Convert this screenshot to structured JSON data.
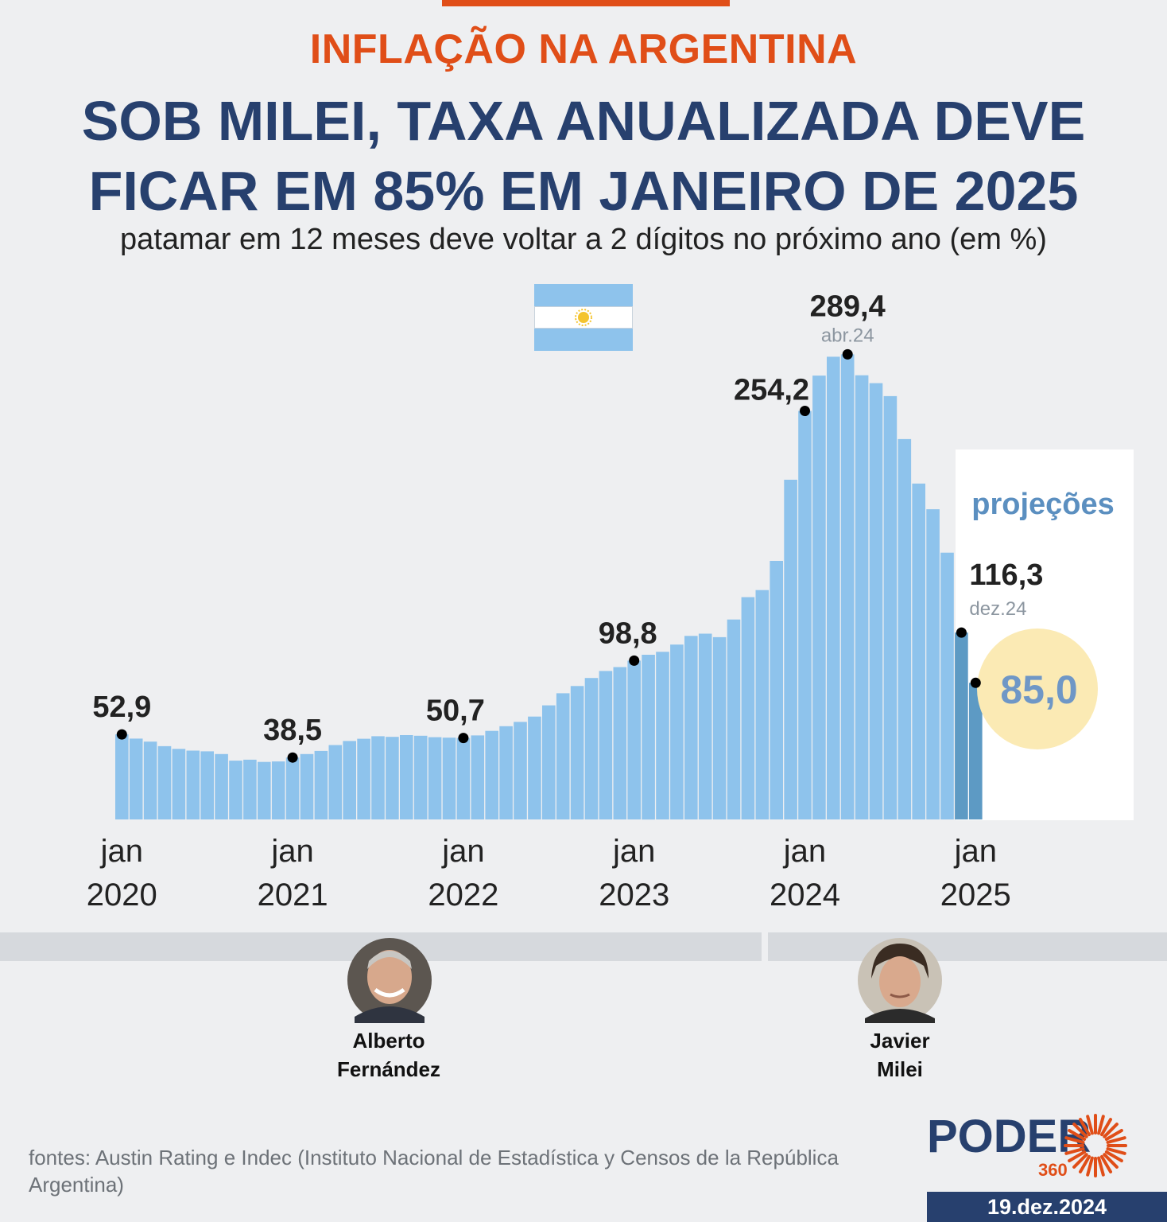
{
  "header": {
    "kicker": "INFLAÇÃO NA ARGENTINA",
    "title_line1": "SOB MILEI, TAXA ANUALIZADA DEVE",
    "title_line2": "FICAR EM 85% EM JANEIRO DE 2025",
    "subtitle": "patamar em 12 meses deve voltar a 2 dígitos no próximo ano (em %)"
  },
  "colors": {
    "accent_orange": "#e04e18",
    "title_navy": "#27406e",
    "bar": "#8ec3ec",
    "bar_projection": "#5d9ac4",
    "projection_label": "#5b8fc0",
    "highlight_circle": "#fbeab4",
    "highlight_text": "#6f97c6",
    "flag_blue": "#8ec3ec",
    "sun": "#f4c430"
  },
  "chart_data": {
    "type": "bar",
    "title": "SOB MILEI, TAXA ANUALIZADA DEVE FICAR EM 85% EM JANEIRO DE 2025",
    "subtitle": "patamar em 12 meses deve voltar a 2 dígitos no próximo ano (em %)",
    "xlabel": "",
    "ylabel": "",
    "ylim": [
      0,
      300
    ],
    "grid": false,
    "x_start": "2020-01",
    "x_end": "2025-01",
    "values": [
      52.9,
      50.3,
      48.4,
      45.6,
      43.9,
      42.8,
      42.4,
      40.7,
      36.6,
      37.2,
      35.8,
      36.1,
      38.5,
      40.7,
      42.6,
      46.3,
      48.8,
      50.2,
      51.8,
      51.4,
      52.5,
      52.1,
      51.2,
      50.9,
      50.7,
      52.3,
      55.1,
      58.0,
      60.7,
      64.0,
      71.0,
      78.5,
      83.0,
      88.0,
      92.4,
      94.8,
      98.8,
      102.5,
      104.3,
      108.8,
      114.2,
      115.6,
      113.4,
      124.4,
      138.3,
      142.7,
      160.9,
      211.4,
      254.2,
      276.2,
      287.9,
      289.4,
      276.4,
      271.5,
      263.4,
      236.7,
      209.0,
      193.0,
      166.0,
      116.3,
      85.0
    ],
    "projection_from_index": 59,
    "projection_label": "projeções",
    "x_tick_labels": [
      {
        "index": 0,
        "month": "jan",
        "year": "2020"
      },
      {
        "index": 12,
        "month": "jan",
        "year": "2021"
      },
      {
        "index": 24,
        "month": "jan",
        "year": "2022"
      },
      {
        "index": 36,
        "month": "jan",
        "year": "2023"
      },
      {
        "index": 48,
        "month": "jan",
        "year": "2024"
      },
      {
        "index": 60,
        "month": "jan",
        "year": "2025"
      }
    ],
    "annotations": [
      {
        "index": 0,
        "label": "52,9",
        "sublabel": ""
      },
      {
        "index": 12,
        "label": "38,5",
        "sublabel": ""
      },
      {
        "index": 24,
        "label": "50,7",
        "sublabel": ""
      },
      {
        "index": 36,
        "label": "98,8",
        "sublabel": ""
      },
      {
        "index": 48,
        "label": "254,2",
        "sublabel": ""
      },
      {
        "index": 51,
        "label": "289,4",
        "sublabel": "abr.24"
      },
      {
        "index": 59,
        "label": "116,3",
        "sublabel": "dez.24"
      },
      {
        "index": 60,
        "label": "85,0",
        "sublabel": "",
        "highlight": true
      }
    ]
  },
  "presidents": [
    {
      "name_line1": "Alberto",
      "name_line2": "Fernández"
    },
    {
      "name_line1": "Javier",
      "name_line2": "Milei"
    }
  ],
  "footer": {
    "source": "fontes: Austin Rating e Indec (Instituto Nacional de Estadística y Censos de la República Argentina)",
    "logo_text": "PODER",
    "logo_sub": "360",
    "date": "19.dez.2024"
  }
}
